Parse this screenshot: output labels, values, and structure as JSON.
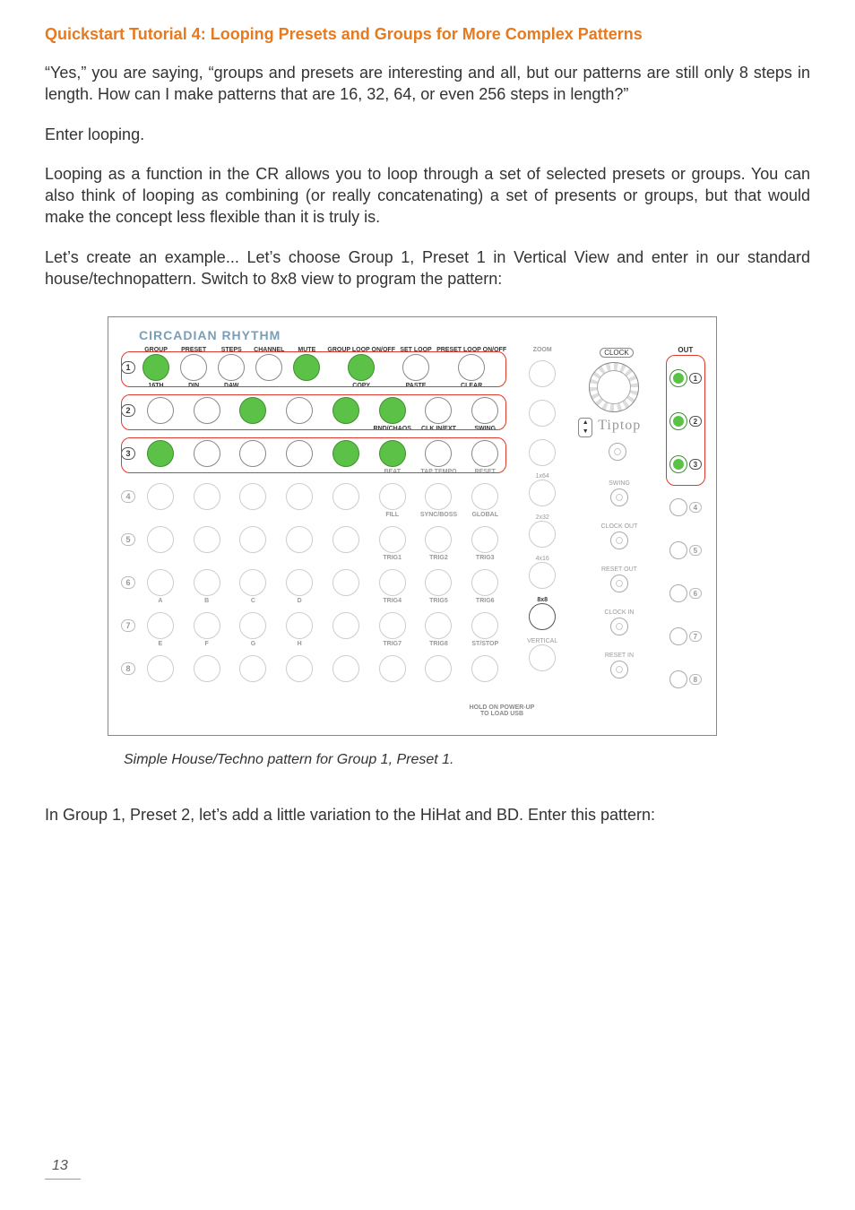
{
  "title": "Quickstart Tutorial 4: Looping Presets and Groups for More Complex Patterns",
  "paragraphs": {
    "p1": "“Yes,” you are saying, “groups and presets are interesting and all, but our patterns are still only 8 steps in length. How can I make patterns that are 16, 32, 64, or even 256 steps in length?”",
    "p2": "Enter looping.",
    "p3": "Looping as a function in the CR allows you to loop through a set of selected presets or groups. You can also think of looping as combining (or really concatenating) a set of presents or groups, but that would make the concept less flexible than it is truly is.",
    "p4": "Let’s create an example... Let’s choose Group 1, Preset 1 in Vertical View and enter in our standard house/technopattern.  Switch to 8x8 view to program the pattern:",
    "p5": "In Group 1, Preset 2, let’s add a little variation to the HiHat and BD. Enter this pattern:"
  },
  "figure": {
    "brand": "CIRCADIAN RHYTHM",
    "caption": "Simple House/Techno pattern for Group 1, Preset 1.",
    "clock_badge": "CLOCK",
    "tiptop": "Tiptop",
    "out_label": "OUT",
    "hold_note_1": "HOLD ON POWER-UP",
    "hold_note_2": "TO LOAD USB",
    "colors": {
      "brand": "#7a9eb5",
      "accent_orange": "#e67a1f",
      "step_on": "#5cc247",
      "step_on_border": "#3d8f2e",
      "red_box": "#e03a2a",
      "circle_border": "#888888",
      "muted": "#cccccc"
    },
    "rows": [
      {
        "num": "1",
        "highlighted": true,
        "labels_top": [
          "GROUP",
          "PRESET",
          "STEPS",
          "CHANNEL",
          "MUTE",
          "GROUP LOOP ON/OFF",
          "SET LOOP",
          "PRESET LOOP ON/OFF"
        ],
        "labels_bottom": [
          "16TH",
          "DIN",
          "DAW",
          "",
          "",
          "COPY",
          "PASTE",
          "CLEAR"
        ],
        "on": [
          1,
          0,
          0,
          0,
          1,
          1,
          0,
          0
        ]
      },
      {
        "num": "2",
        "highlighted": true,
        "labels_top": [
          "",
          "",
          "",
          "",
          "",
          "",
          "",
          ""
        ],
        "labels_bottom": [
          "",
          "",
          "",
          "",
          "",
          "RND/CHAOS",
          "CLK IN/EXT",
          "SWING"
        ],
        "on": [
          0,
          0,
          1,
          0,
          1,
          1,
          0,
          0
        ]
      },
      {
        "num": "3",
        "highlighted": true,
        "labels_top": [
          "",
          "",
          "",
          "",
          "",
          "",
          "",
          ""
        ],
        "labels_bottom": [
          "",
          "",
          "",
          "",
          "",
          "BEAT",
          "TAP TEMPO",
          "RESET"
        ],
        "on": [
          1,
          0,
          0,
          0,
          1,
          1,
          0,
          0
        ]
      },
      {
        "num": "4",
        "highlighted": false,
        "labels_top": [
          "",
          "",
          "",
          "",
          "",
          "",
          "",
          ""
        ],
        "labels_bottom": [
          "",
          "",
          "",
          "",
          "",
          "FILL",
          "SYNC/BOSS",
          "GLOBAL"
        ],
        "on": [
          0,
          0,
          0,
          0,
          0,
          0,
          0,
          0
        ]
      },
      {
        "num": "5",
        "highlighted": false,
        "labels_top": [
          "",
          "",
          "",
          "",
          "",
          "",
          "",
          ""
        ],
        "labels_bottom": [
          "",
          "",
          "",
          "",
          "",
          "TRIG1",
          "TRIG2",
          "TRIG3"
        ],
        "on": [
          0,
          0,
          0,
          0,
          0,
          0,
          0,
          0
        ]
      },
      {
        "num": "6",
        "highlighted": false,
        "labels_top": [
          "",
          "",
          "",
          "",
          "",
          "",
          "",
          ""
        ],
        "labels_bottom": [
          "A",
          "B",
          "C",
          "D",
          "",
          "TRIG4",
          "TRIG5",
          "TRIG6"
        ],
        "on": [
          0,
          0,
          0,
          0,
          0,
          0,
          0,
          0
        ]
      },
      {
        "num": "7",
        "highlighted": false,
        "labels_top": [
          "",
          "",
          "",
          "",
          "",
          "",
          "",
          ""
        ],
        "labels_bottom": [
          "E",
          "F",
          "G",
          "H",
          "",
          "TRIG7",
          "TRIG8",
          "ST/STOP"
        ],
        "on": [
          0,
          0,
          0,
          0,
          0,
          0,
          0,
          0
        ]
      },
      {
        "num": "8",
        "highlighted": false,
        "labels_top": [
          "",
          "",
          "",
          "",
          "",
          "",
          "",
          ""
        ],
        "labels_bottom": [
          "",
          "",
          "",
          "",
          "",
          "",
          "",
          ""
        ],
        "on": [
          0,
          0,
          0,
          0,
          0,
          0,
          0,
          0
        ]
      }
    ],
    "zoom": {
      "header": "ZOOM",
      "items": [
        "",
        "",
        "",
        "1x64",
        "2x32",
        "4x16",
        "8x8",
        "VERTICAL"
      ],
      "active_index": 6
    },
    "right_jacks": [
      "SWING",
      "CLOCK OUT",
      "RESET OUT",
      "CLOCK IN",
      "RESET IN"
    ],
    "out_numbers": [
      "1",
      "2",
      "3",
      "4",
      "5",
      "6",
      "7",
      "8"
    ],
    "out_green_count": 3
  },
  "page_number": "13"
}
